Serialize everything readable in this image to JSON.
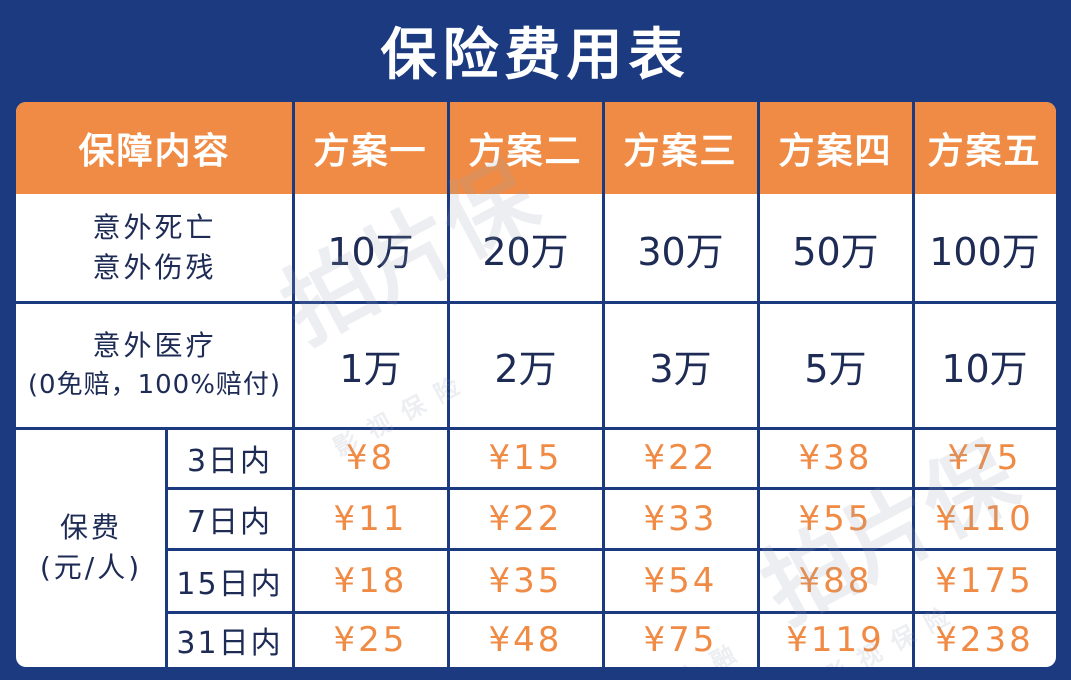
{
  "title": "保险费用表",
  "header": {
    "coverage": "保障内容",
    "plans": [
      "方案一",
      "方案二",
      "方案三",
      "方案四",
      "方案五"
    ]
  },
  "rows": {
    "death": {
      "label_line1": "意外死亡",
      "label_line2": "意外伤残",
      "values": [
        "10万",
        "20万",
        "30万",
        "50万",
        "100万"
      ]
    },
    "medical": {
      "label_line1": "意外医疗",
      "label_line2": "(0免赔，100%赔付)",
      "values": [
        "1万",
        "2万",
        "3万",
        "5万",
        "10万"
      ]
    }
  },
  "premium": {
    "label_line1": "保费",
    "label_line2": "(元/人)",
    "periods": [
      {
        "days": "3日内",
        "prices": [
          "¥8",
          "¥15",
          "¥22",
          "¥38",
          "¥75"
        ]
      },
      {
        "days": "7日内",
        "prices": [
          "¥11",
          "¥22",
          "¥33",
          "¥55",
          "¥110"
        ]
      },
      {
        "days": "15日内",
        "prices": [
          "¥18",
          "¥35",
          "¥54",
          "¥88",
          "¥175"
        ]
      },
      {
        "days": "31日内",
        "prices": [
          "¥25",
          "¥48",
          "¥75",
          "¥119",
          "¥238"
        ]
      }
    ]
  },
  "watermark": {
    "brand": "拍片保",
    "tagline": "影视保险",
    "tagline2": "片金融"
  },
  "colors": {
    "background": "#1b3a80",
    "header": "#f08b45",
    "price": "#f08b45",
    "text": "#1d2b55"
  }
}
